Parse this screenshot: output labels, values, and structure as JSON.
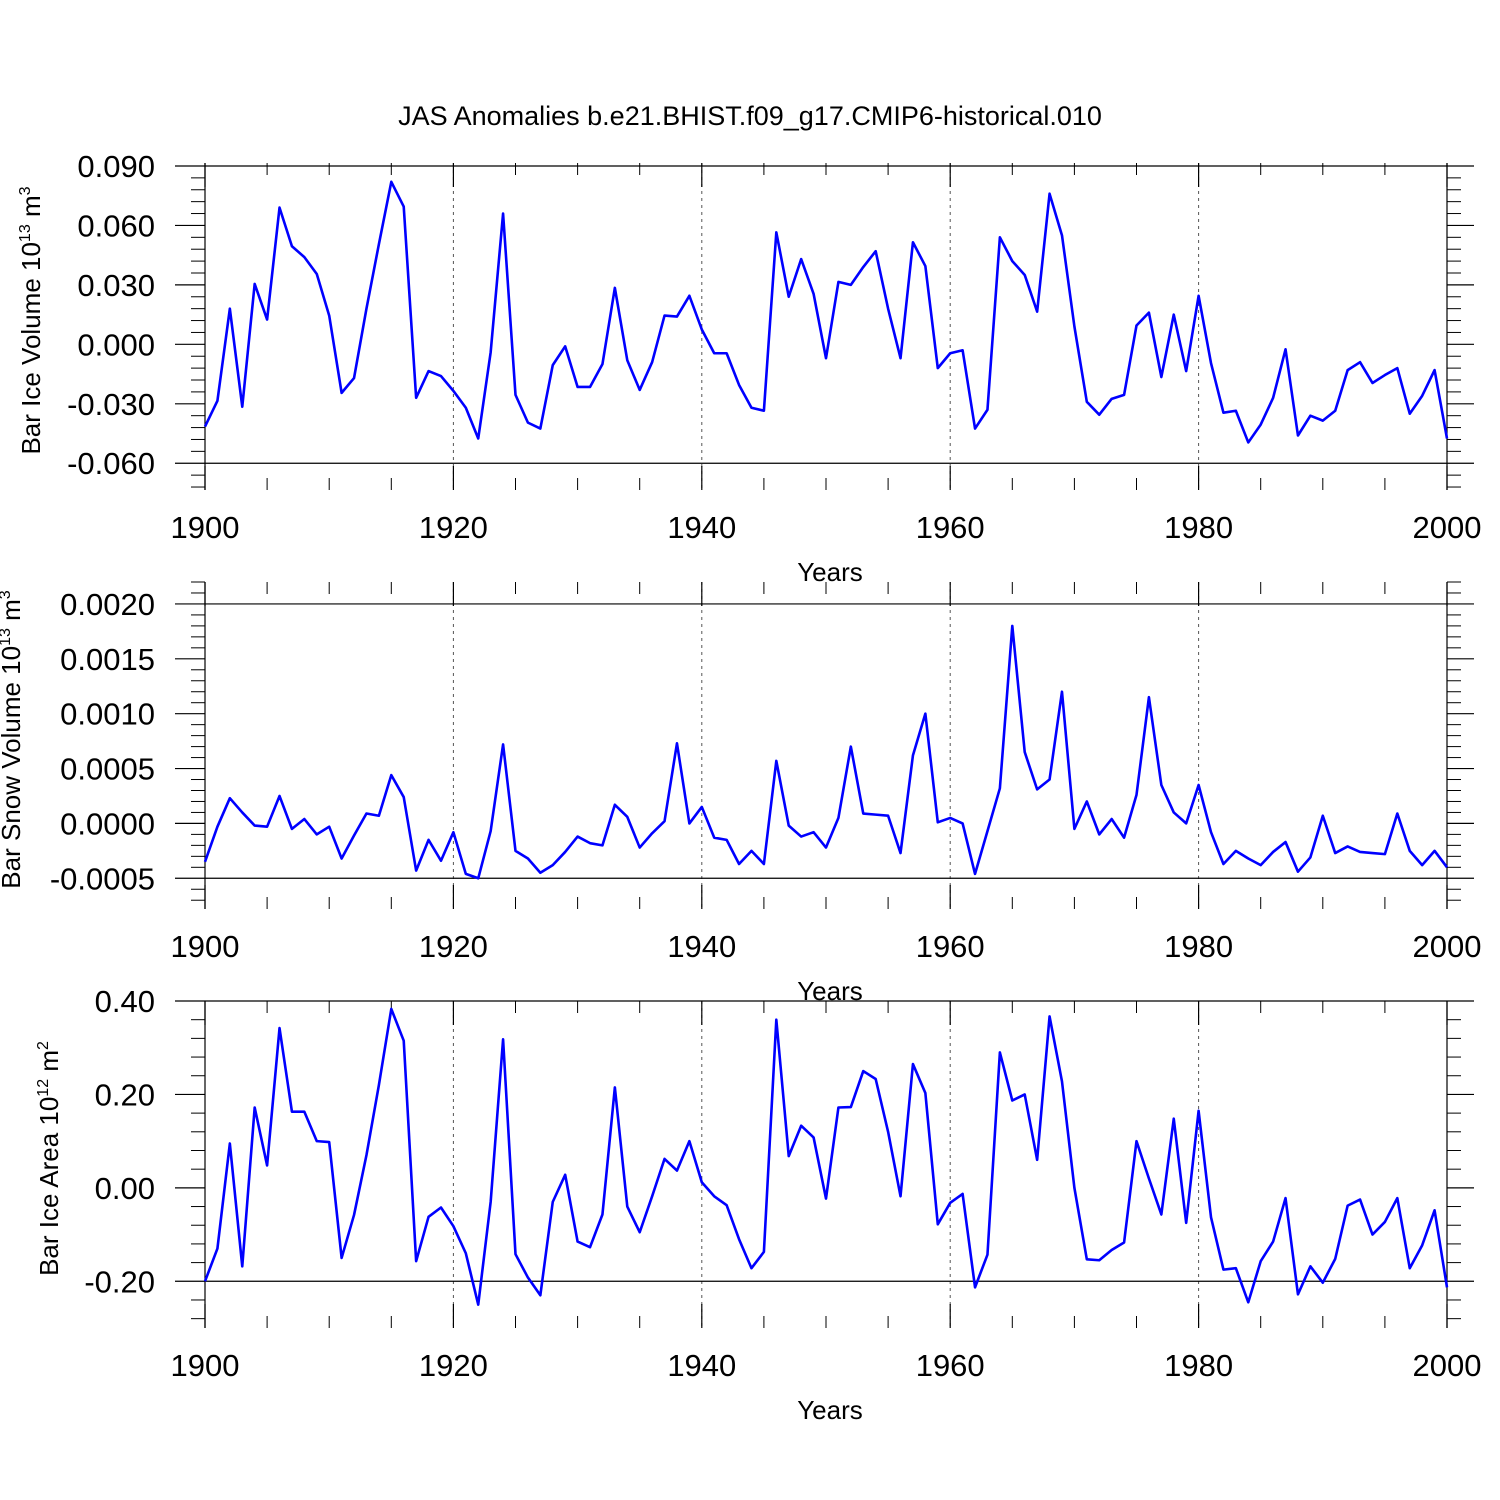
{
  "chart_data": {
    "title": "JAS Anomalies b.e21.BHIST.f09_g17.CMIP6-historical.010",
    "colors": {
      "line": "#0000ff",
      "axis": "#000000",
      "grid": "#555555"
    },
    "panels": [
      {
        "type": "line",
        "ylabel": {
          "main": "Bar Ice Volume 10",
          "exp": "13",
          "unit": " m",
          "unit_exp": "3"
        },
        "xlabel": "Years",
        "xlim": [
          1900,
          2000
        ],
        "ylim": [
          -0.0735,
          0.0915
        ],
        "yticks": [
          -0.06,
          -0.03,
          0.0,
          0.03,
          0.06,
          0.09
        ],
        "ytick_labels": [
          "-0.060",
          "-0.030",
          "0.000",
          "0.030",
          "0.060",
          "0.090"
        ],
        "xticks": [
          1900,
          1920,
          1940,
          1960,
          1980,
          2000
        ],
        "xtick_labels": [
          "1900",
          "1920",
          "1940",
          "1960",
          "1980",
          "2000"
        ],
        "grid_x": [
          1920,
          1940,
          1960,
          1980
        ],
        "x_start": 1900,
        "values": [
          -0.0415,
          -0.0285,
          0.018,
          -0.0315,
          0.0305,
          0.0125,
          0.069,
          0.0495,
          0.044,
          0.0355,
          0.0145,
          -0.0245,
          -0.017,
          0.018,
          0.0505,
          0.082,
          0.0695,
          -0.027,
          -0.0135,
          -0.016,
          -0.0235,
          -0.032,
          -0.0475,
          -0.004,
          0.066,
          -0.0255,
          -0.0395,
          -0.0425,
          -0.0105,
          -0.001,
          -0.0215,
          -0.0215,
          -0.01,
          0.0285,
          -0.008,
          -0.023,
          -0.009,
          0.0145,
          0.014,
          0.0245,
          0.0075,
          -0.0045,
          -0.0045,
          -0.0205,
          -0.032,
          -0.0335,
          0.0565,
          0.024,
          0.043,
          0.0255,
          -0.007,
          0.0315,
          0.03,
          0.039,
          0.047,
          0.018,
          -0.007,
          0.0515,
          0.0395,
          -0.012,
          -0.0045,
          -0.003,
          -0.0425,
          -0.033,
          0.054,
          0.042,
          0.035,
          0.0165,
          0.076,
          0.055,
          0.009,
          -0.029,
          -0.0355,
          -0.0275,
          -0.0255,
          0.0095,
          0.016,
          -0.0165,
          0.015,
          -0.0135,
          0.0245,
          -0.0095,
          -0.0345,
          -0.0335,
          -0.0495,
          -0.0405,
          -0.027,
          -0.0025,
          -0.046,
          -0.036,
          -0.0385,
          -0.0335,
          -0.013,
          -0.009,
          -0.0195,
          -0.0155,
          -0.012,
          -0.035,
          -0.026,
          -0.013,
          -0.0475
        ]
      },
      {
        "type": "line",
        "ylabel": {
          "main": "Bar Snow Volume 10",
          "exp": "13",
          "unit": " m",
          "unit_exp": "3"
        },
        "xlabel": "Years",
        "xlim": [
          1900,
          2000
        ],
        "ylim": [
          -0.00078,
          0.0022
        ],
        "yticks": [
          -0.0005,
          0.0,
          0.0005,
          0.001,
          0.0015,
          0.002
        ],
        "ytick_labels": [
          "-0.0005",
          "0.0000",
          "0.0005",
          "0.0010",
          "0.0015",
          "0.0020"
        ],
        "xticks": [
          1900,
          1920,
          1940,
          1960,
          1980,
          2000
        ],
        "xtick_labels": [
          "1900",
          "1920",
          "1940",
          "1960",
          "1980",
          "2000"
        ],
        "grid_x": [
          1920,
          1940,
          1960,
          1980
        ],
        "x_start": 1900,
        "values": [
          -0.00035,
          -3e-05,
          0.00023,
          0.0001,
          -2e-05,
          -3e-05,
          0.00025,
          -5e-05,
          4e-05,
          -0.0001,
          -3e-05,
          -0.00032,
          -0.00011,
          9e-05,
          7e-05,
          0.00044,
          0.00024,
          -0.00043,
          -0.00015,
          -0.00034,
          -8e-05,
          -0.00046,
          -0.0005,
          -7e-05,
          0.00072,
          -0.00025,
          -0.00032,
          -0.00045,
          -0.00038,
          -0.00026,
          -0.00012,
          -0.00018,
          -0.0002,
          0.00017,
          6e-05,
          -0.00022,
          -9e-05,
          2e-05,
          0.00073,
          0.0,
          0.00015,
          -0.00013,
          -0.00015,
          -0.00037,
          -0.00025,
          -0.00037,
          0.00057,
          -2e-05,
          -0.00012,
          -8e-05,
          -0.00022,
          5e-05,
          0.0007,
          9e-05,
          8e-05,
          7e-05,
          -0.00027,
          0.00062,
          0.001,
          1e-05,
          5e-05,
          0.0,
          -0.00046,
          -7e-05,
          0.00032,
          0.0018,
          0.00065,
          0.00031,
          0.0004,
          0.0012,
          -5e-05,
          0.0002,
          -0.0001,
          4e-05,
          -0.00013,
          0.00026,
          0.00115,
          0.00035,
          0.0001,
          0.0,
          0.00035,
          -8e-05,
          -0.00037,
          -0.00025,
          -0.00032,
          -0.00038,
          -0.00026,
          -0.00017,
          -0.00044,
          -0.00031,
          7e-05,
          -0.00027,
          -0.00021,
          -0.00026,
          -0.00027,
          -0.00028,
          9e-05,
          -0.00025,
          -0.00038,
          -0.00025,
          -0.0004
        ]
      },
      {
        "type": "line",
        "ylabel": {
          "main": "Bar Ice Area 10",
          "exp": "12",
          "unit": " m",
          "unit_exp": "2"
        },
        "xlabel": "Years",
        "xlim": [
          1900,
          2000
        ],
        "ylim": [
          -0.3,
          0.4
        ],
        "yticks": [
          -0.2,
          0.0,
          0.2,
          0.4
        ],
        "ytick_labels": [
          "-0.20",
          "0.00",
          "0.20",
          "0.40"
        ],
        "xticks": [
          1900,
          1920,
          1940,
          1960,
          1980,
          2000
        ],
        "xtick_labels": [
          "1900",
          "1920",
          "1940",
          "1960",
          "1980",
          "2000"
        ],
        "grid_x": [
          1920,
          1940,
          1960,
          1980
        ],
        "x_start": 1900,
        "values": [
          -0.2,
          -0.13,
          0.095,
          -0.168,
          0.172,
          0.048,
          0.342,
          0.163,
          0.163,
          0.1,
          0.098,
          -0.15,
          -0.058,
          0.07,
          0.22,
          0.383,
          0.315,
          -0.157,
          -0.062,
          -0.042,
          -0.082,
          -0.14,
          -0.25,
          -0.03,
          0.318,
          -0.142,
          -0.192,
          -0.23,
          -0.03,
          0.028,
          -0.115,
          -0.127,
          -0.057,
          0.215,
          -0.04,
          -0.095,
          -0.018,
          0.062,
          0.037,
          0.1,
          0.012,
          -0.018,
          -0.037,
          -0.11,
          -0.172,
          -0.137,
          0.36,
          0.068,
          0.133,
          0.108,
          -0.023,
          0.172,
          0.173,
          0.25,
          0.233,
          0.12,
          -0.018,
          0.265,
          0.203,
          -0.078,
          -0.032,
          -0.013,
          -0.213,
          -0.143,
          0.29,
          0.187,
          0.2,
          0.06,
          0.367,
          0.228,
          0.0,
          -0.153,
          -0.155,
          -0.133,
          -0.117,
          0.1,
          0.02,
          -0.057,
          0.148,
          -0.075,
          0.165,
          -0.063,
          -0.175,
          -0.172,
          -0.245,
          -0.157,
          -0.115,
          -0.022,
          -0.228,
          -0.168,
          -0.203,
          -0.152,
          -0.038,
          -0.025,
          -0.1,
          -0.073,
          -0.022,
          -0.172,
          -0.123,
          -0.048,
          -0.213
        ]
      }
    ]
  }
}
